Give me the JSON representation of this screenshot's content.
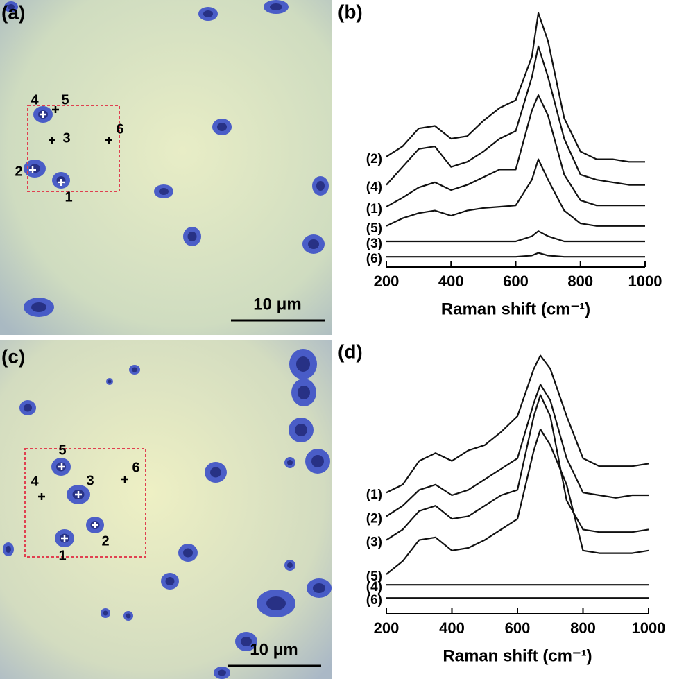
{
  "panels": [
    {
      "label": "(a)",
      "scale_bar": "10 μm",
      "points": [
        "1",
        "2",
        "3",
        "4",
        "5",
        "6"
      ]
    },
    {
      "label": "(c)",
      "scale_bar": "10 μm",
      "points": [
        "1",
        "2",
        "3",
        "4",
        "5",
        "6"
      ]
    }
  ],
  "chart_data": [
    {
      "type": "line",
      "label": "(b)",
      "xlabel": "Raman shift (cm⁻¹)",
      "x": [
        200,
        250,
        300,
        350,
        400,
        450,
        500,
        550,
        600,
        650,
        670,
        700,
        750,
        800,
        850,
        900,
        950,
        1000
      ],
      "xlim": [
        200,
        1000
      ],
      "xticks": [
        200,
        400,
        600,
        800,
        1000
      ],
      "ylim": [
        0,
        100
      ],
      "series": [
        {
          "name": "(2)",
          "color": "#111111",
          "values": [
            43,
            47,
            54,
            55,
            50,
            51,
            57,
            62,
            65,
            82,
            99,
            88,
            58,
            45,
            42,
            42,
            41,
            41
          ]
        },
        {
          "name": "(4)",
          "color": "#111111",
          "values": [
            32,
            39,
            46,
            47,
            39,
            41,
            45,
            50,
            53,
            74,
            86,
            74,
            50,
            36,
            34,
            33,
            32,
            32
          ]
        },
        {
          "name": "(1)",
          "color": "#111111",
          "values": [
            23.5,
            27,
            31,
            33,
            30,
            32,
            35,
            38,
            38,
            61,
            67,
            59,
            36,
            26,
            24,
            24,
            24,
            24
          ]
        },
        {
          "name": "(5)",
          "color": "#111111",
          "values": [
            16,
            19,
            21,
            22,
            20,
            22,
            23,
            23.5,
            24,
            34,
            42,
            34,
            22,
            17,
            16,
            16,
            16,
            16
          ]
        },
        {
          "name": "(3)",
          "color": "#111111",
          "values": [
            10,
            10,
            10,
            10,
            10,
            10,
            10,
            10,
            10,
            12,
            14,
            12,
            10,
            10,
            10,
            10,
            10,
            10
          ]
        },
        {
          "name": "(6)",
          "color": "#111111",
          "values": [
            4,
            4,
            4,
            4,
            4,
            4,
            4,
            4,
            4,
            4.5,
            5.5,
            4.5,
            4,
            4,
            4,
            4,
            4,
            4
          ]
        }
      ]
    },
    {
      "type": "line",
      "label": "(d)",
      "xlabel": "Raman shift (cm⁻¹)",
      "x": [
        200,
        250,
        300,
        350,
        400,
        450,
        500,
        550,
        600,
        650,
        670,
        700,
        750,
        800,
        850,
        900,
        950,
        1000
      ],
      "xlim": [
        200,
        1000
      ],
      "xticks": [
        200,
        400,
        600,
        800,
        1000
      ],
      "ylim": [
        0,
        100
      ],
      "series": [
        {
          "name": "(1)",
          "color": "#111111",
          "values": [
            46,
            49,
            58,
            61,
            58,
            62,
            64,
            69,
            75,
            93,
            98,
            93,
            75,
            59,
            56,
            56,
            56,
            57
          ]
        },
        {
          "name": "(2)",
          "color": "#111111",
          "values": [
            37,
            41,
            47,
            49,
            45,
            47,
            51,
            55,
            59,
            80,
            87,
            81,
            59,
            46,
            45,
            44,
            45,
            45
          ]
        },
        {
          "name": "(3)",
          "color": "#111111",
          "values": [
            28,
            32,
            39,
            41,
            36,
            37,
            41,
            45,
            47,
            75,
            83,
            75,
            43,
            32,
            31,
            31,
            31,
            32
          ]
        },
        {
          "name": "(5)",
          "color": "#111111",
          "values": [
            15,
            20,
            28,
            29,
            24,
            25,
            28,
            32,
            36,
            62,
            70,
            64,
            49,
            24,
            23,
            23,
            23,
            24
          ]
        },
        {
          "name": "(4)",
          "color": "#111111",
          "values": [
            11,
            11,
            11,
            11,
            11,
            11,
            11,
            11,
            11,
            11,
            11,
            11,
            11,
            11,
            11,
            11,
            11,
            11
          ]
        },
        {
          "name": "(6)",
          "color": "#111111",
          "values": [
            6,
            6,
            6,
            6,
            6,
            6,
            6,
            6,
            6,
            6,
            6,
            6,
            6,
            6,
            6,
            6,
            6,
            6
          ]
        }
      ]
    }
  ]
}
